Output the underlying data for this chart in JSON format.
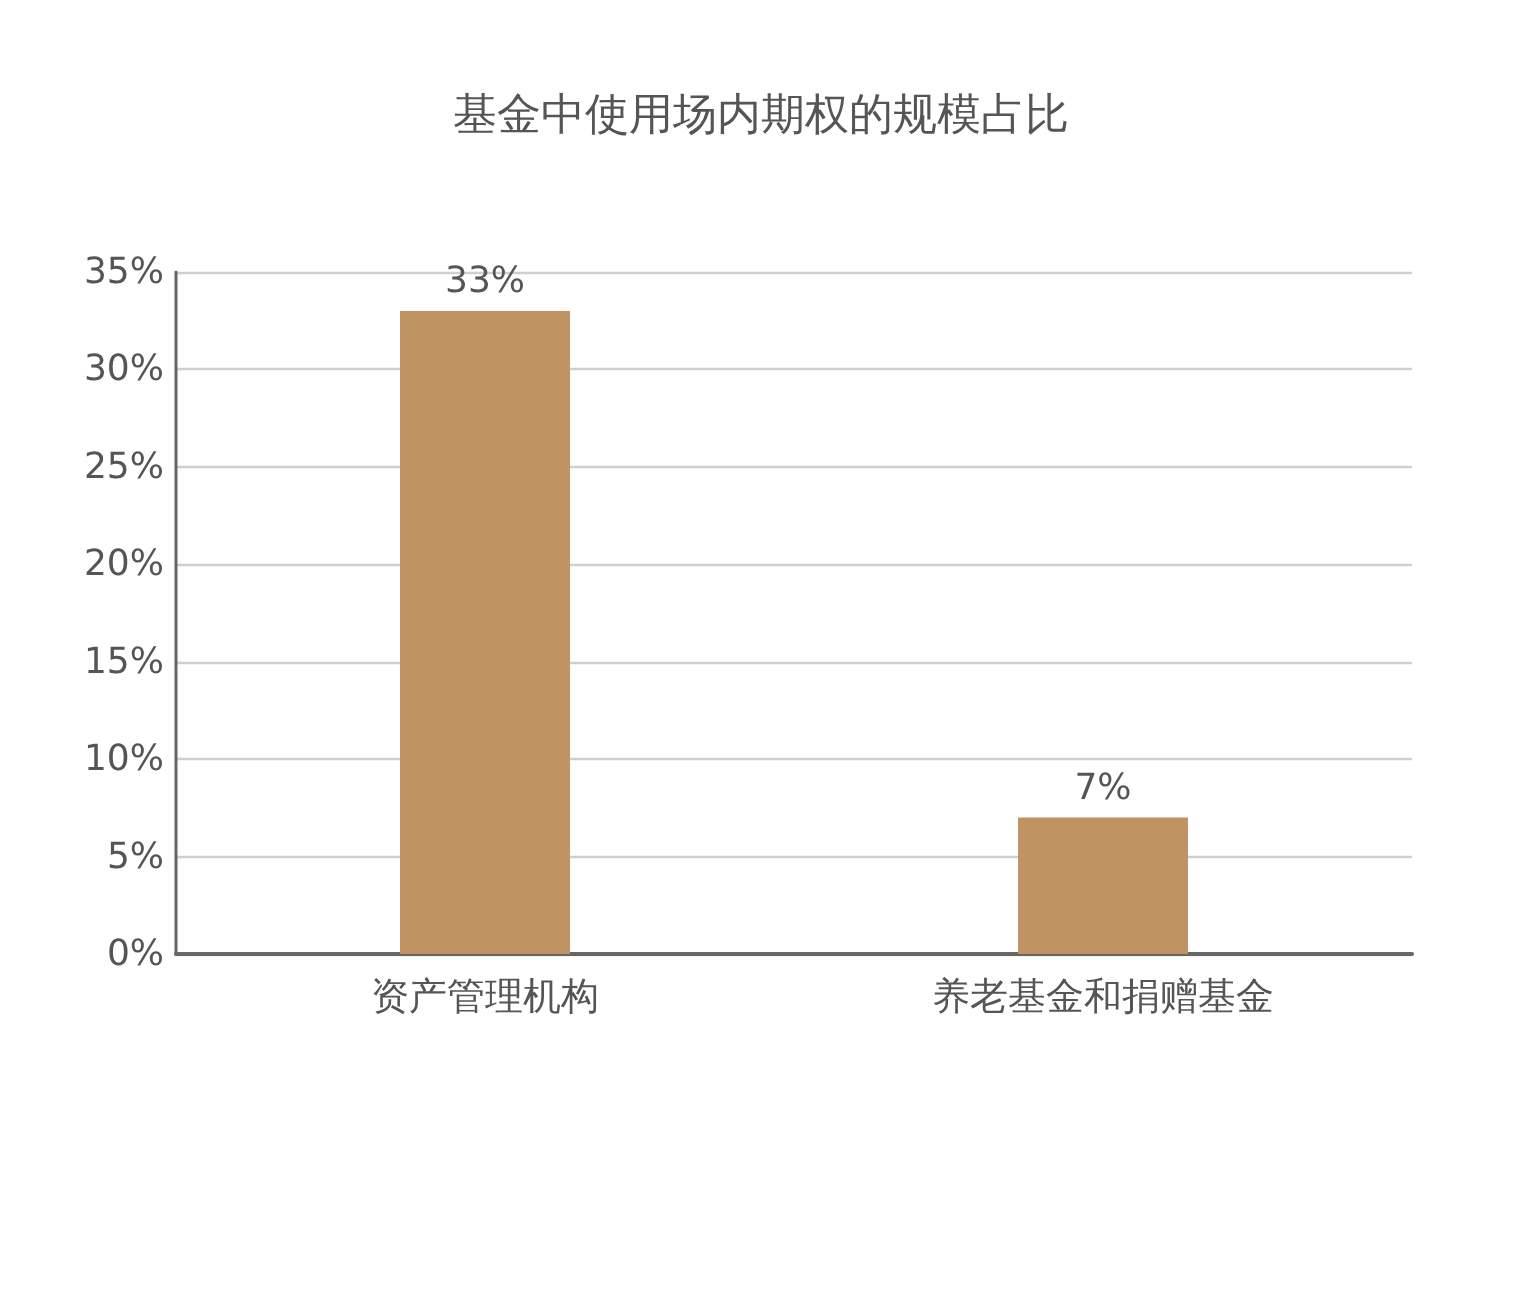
{
  "chart_data": {
    "type": "bar",
    "title": "基金中使用场内期权的规模占比",
    "categories": [
      "资产管理机构",
      "养老基金和捐赠基金"
    ],
    "values": [
      33,
      7
    ],
    "value_labels": [
      "33%",
      "7%"
    ],
    "color": "#c09363",
    "ylim": [
      0,
      35
    ],
    "yticks": [
      {
        "value": 0,
        "label": "0%"
      },
      {
        "value": 5,
        "label": "5%"
      },
      {
        "value": 10,
        "label": "10%"
      },
      {
        "value": 15,
        "label": "15%"
      },
      {
        "value": 20,
        "label": "20%"
      },
      {
        "value": 25,
        "label": "25%"
      },
      {
        "value": 30,
        "label": "30%"
      },
      {
        "value": 35,
        "label": "35%"
      }
    ],
    "grid": "y"
  }
}
